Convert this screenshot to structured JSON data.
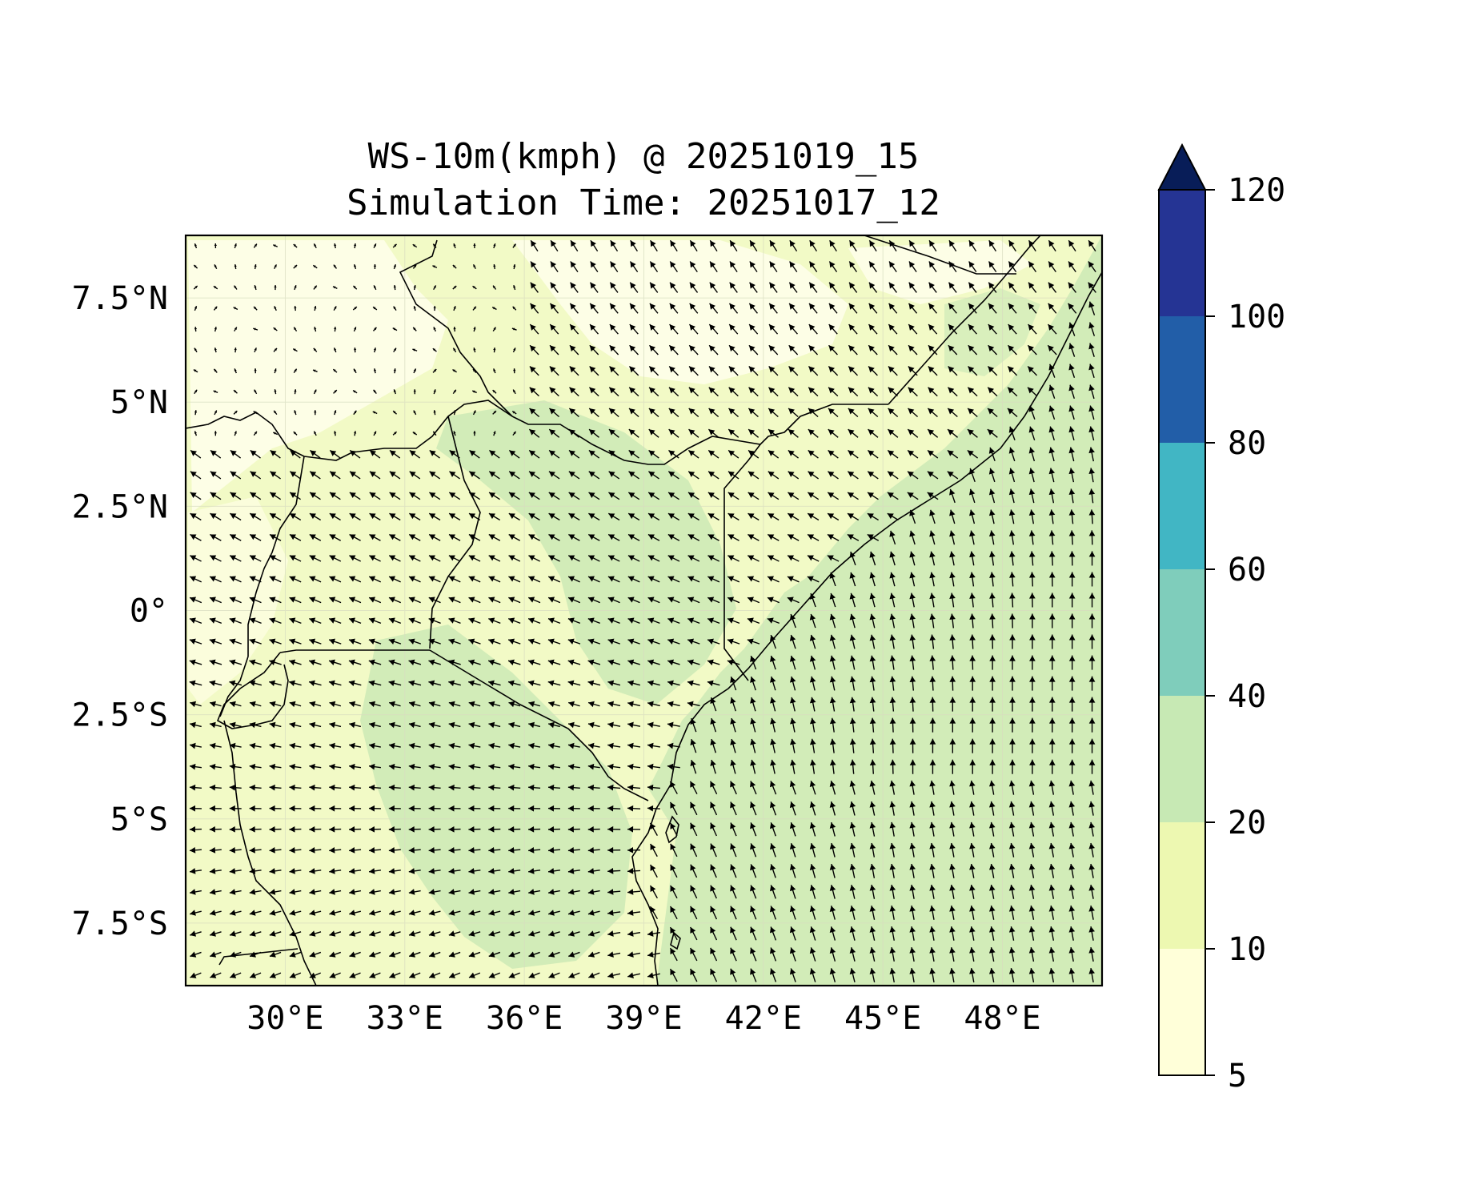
{
  "title": {
    "line1": "WS-10m(kmph) @ 20251019_15",
    "line2": "Simulation Time: 20251017_12"
  },
  "map": {
    "variable": "10 m wind speed",
    "units": "kmph",
    "lon_range": [
      27.5,
      50.5
    ],
    "lat_range": [
      -9,
      9
    ],
    "lon_ticks": [
      {
        "value": 30,
        "label": "30°E"
      },
      {
        "value": 33,
        "label": "33°E"
      },
      {
        "value": 36,
        "label": "36°E"
      },
      {
        "value": 39,
        "label": "39°E"
      },
      {
        "value": 42,
        "label": "42°E"
      },
      {
        "value": 45,
        "label": "45°E"
      },
      {
        "value": 48,
        "label": "48°E"
      }
    ],
    "lat_ticks": [
      {
        "value": 7.5,
        "label": "7.5°N"
      },
      {
        "value": 5,
        "label": "5°N"
      },
      {
        "value": 2.5,
        "label": "2.5°N"
      },
      {
        "value": 0,
        "label": "0°"
      },
      {
        "value": -2.5,
        "label": "2.5°S"
      },
      {
        "value": -5,
        "label": "5°S"
      },
      {
        "value": -7.5,
        "label": "7.5°S"
      }
    ],
    "grid": true,
    "vector_field": "wind arrows",
    "colors": {
      "land_low": "#f4fbc8",
      "ocean": "#d2ecb8",
      "border": "#000000"
    }
  },
  "colorbar": {
    "extend": "max",
    "levels": [
      {
        "from": 5,
        "to": 10,
        "color": "#ffffd9"
      },
      {
        "from": 10,
        "to": 20,
        "color": "#edf8b1"
      },
      {
        "from": 20,
        "to": 40,
        "color": "#c7e9b4"
      },
      {
        "from": 40,
        "to": 60,
        "color": "#7fcdbb"
      },
      {
        "from": 60,
        "to": 80,
        "color": "#41b6c4"
      },
      {
        "from": 80,
        "to": 100,
        "color": "#225ea8"
      },
      {
        "from": 100,
        "to": 120,
        "color": "#253494"
      }
    ],
    "extend_color": "#081d58",
    "tick_labels": [
      "5",
      "10",
      "20",
      "40",
      "60",
      "80",
      "100",
      "120"
    ]
  }
}
